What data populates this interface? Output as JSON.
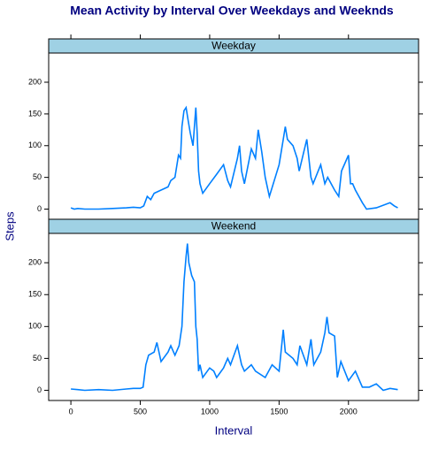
{
  "chart_data": {
    "type": "line",
    "title": "Mean Activity by Interval Over Weekdays and Weeknds",
    "xlabel": "Interval",
    "ylabel": "Steps",
    "color": "#0080ff",
    "strip_color": "#9fd1e4",
    "xlim": [
      -160,
      2505
    ],
    "ylim": [
      -16,
      246
    ],
    "xticks": [
      0,
      500,
      1000,
      1500,
      2000
    ],
    "yticks": [
      0,
      50,
      100,
      150,
      200
    ],
    "series": [
      {
        "name": "Weekday",
        "x": [
          0,
          25,
          50,
          100,
          200,
          300,
          400,
          450,
          500,
          525,
          550,
          575,
          600,
          650,
          700,
          720,
          750,
          775,
          790,
          800,
          815,
          830,
          845,
          860,
          880,
          900,
          910,
          920,
          930,
          950,
          1000,
          1050,
          1100,
          1130,
          1150,
          1200,
          1215,
          1230,
          1250,
          1300,
          1330,
          1350,
          1375,
          1400,
          1430,
          1500,
          1530,
          1545,
          1560,
          1600,
          1630,
          1645,
          1700,
          1730,
          1745,
          1800,
          1830,
          1850,
          1900,
          1930,
          1950,
          2000,
          2015,
          2030,
          2050,
          2100,
          2130,
          2200,
          2300,
          2330,
          2355
        ],
        "values": [
          2,
          0,
          1,
          0,
          0,
          1,
          2,
          3,
          2,
          5,
          20,
          15,
          25,
          30,
          35,
          45,
          50,
          85,
          80,
          130,
          155,
          160,
          140,
          120,
          100,
          160,
          120,
          60,
          40,
          25,
          40,
          55,
          70,
          45,
          35,
          80,
          100,
          60,
          40,
          95,
          80,
          125,
          90,
          50,
          20,
          70,
          110,
          130,
          110,
          100,
          80,
          60,
          110,
          50,
          40,
          70,
          40,
          50,
          30,
          20,
          60,
          85,
          40,
          40,
          30,
          10,
          0,
          2,
          10,
          5,
          2
        ]
      },
      {
        "name": "Weekend",
        "x": [
          0,
          50,
          100,
          200,
          300,
          400,
          450,
          500,
          520,
          540,
          560,
          600,
          620,
          650,
          700,
          720,
          750,
          780,
          800,
          815,
          830,
          840,
          850,
          870,
          890,
          900,
          910,
          920,
          930,
          950,
          1000,
          1030,
          1050,
          1100,
          1130,
          1150,
          1200,
          1230,
          1250,
          1300,
          1330,
          1400,
          1450,
          1500,
          1530,
          1545,
          1600,
          1630,
          1650,
          1700,
          1730,
          1750,
          1800,
          1830,
          1845,
          1860,
          1900,
          1920,
          1945,
          2000,
          2050,
          2100,
          2150,
          2200,
          2250,
          2300,
          2355
        ],
        "values": [
          2,
          1,
          0,
          1,
          0,
          2,
          3,
          3,
          5,
          40,
          55,
          60,
          75,
          45,
          60,
          70,
          55,
          70,
          100,
          170,
          210,
          230,
          200,
          180,
          170,
          100,
          80,
          30,
          40,
          20,
          35,
          30,
          20,
          35,
          50,
          40,
          70,
          40,
          30,
          40,
          30,
          20,
          40,
          30,
          95,
          60,
          50,
          40,
          70,
          40,
          80,
          40,
          60,
          90,
          115,
          90,
          85,
          20,
          45,
          15,
          30,
          5,
          5,
          10,
          0,
          3,
          1
        ]
      }
    ]
  }
}
